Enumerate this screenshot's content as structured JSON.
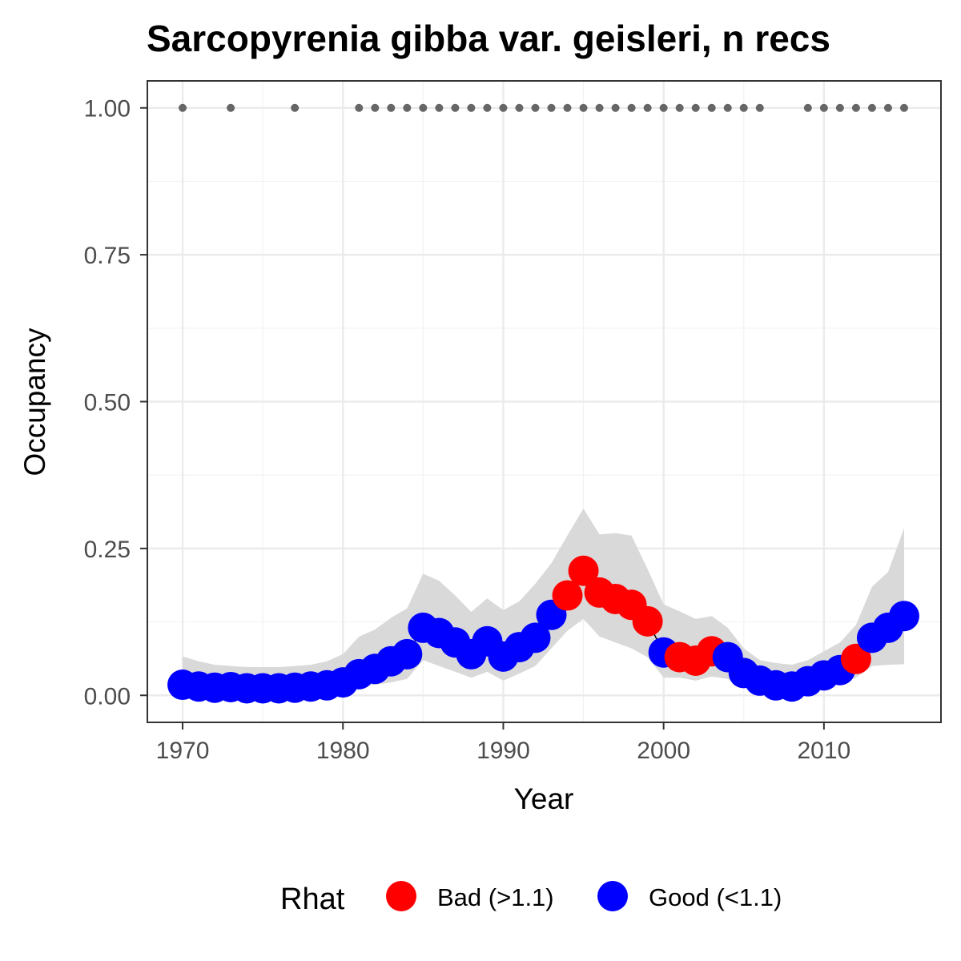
{
  "chart_data": {
    "type": "scatter",
    "title": "Sarcopyrenia gibba var. geisleri, n recs",
    "xlabel": "Year",
    "ylabel": "Occupancy",
    "xlim": [
      1967.8,
      2017.3
    ],
    "ylim": [
      -0.046,
      1.046
    ],
    "x_ticks": [
      1970,
      1980,
      1990,
      2000,
      2010
    ],
    "x_tick_labels": [
      "1970",
      "1980",
      "1990",
      "2000",
      "2010"
    ],
    "y_ticks": [
      0,
      0.25,
      0.5,
      0.75,
      1.0
    ],
    "y_tick_labels": [
      "0.00",
      "0.25",
      "0.50",
      "0.75",
      "1.00"
    ],
    "grid": true,
    "legend": {
      "title": "Rhat",
      "position": "bottom",
      "entries": [
        {
          "label": "Bad (>1.1)",
          "color": "#ff0000"
        },
        {
          "label": "Good (<1.1)",
          "color": "#0000ff"
        }
      ]
    },
    "colors": {
      "bad": "#ff0000",
      "good": "#0000ff",
      "ribbon": "#d9d9d9",
      "records": "#666666"
    },
    "years": [
      1970,
      1971,
      1972,
      1973,
      1974,
      1975,
      1976,
      1977,
      1978,
      1979,
      1980,
      1981,
      1982,
      1983,
      1984,
      1985,
      1986,
      1987,
      1988,
      1989,
      1990,
      1991,
      1992,
      1993,
      1994,
      1995,
      1996,
      1997,
      1998,
      1999,
      2000,
      2001,
      2002,
      2003,
      2004,
      2005,
      2006,
      2007,
      2008,
      2009,
      2010,
      2011,
      2012,
      2013,
      2014,
      2015
    ],
    "occupancy": [
      0.018,
      0.015,
      0.013,
      0.014,
      0.012,
      0.012,
      0.012,
      0.013,
      0.015,
      0.017,
      0.022,
      0.036,
      0.045,
      0.058,
      0.07,
      0.115,
      0.106,
      0.09,
      0.07,
      0.092,
      0.066,
      0.082,
      0.098,
      0.137,
      0.17,
      0.212,
      0.175,
      0.164,
      0.154,
      0.126,
      0.073,
      0.065,
      0.059,
      0.075,
      0.065,
      0.038,
      0.025,
      0.017,
      0.015,
      0.024,
      0.034,
      0.043,
      0.062,
      0.098,
      0.115,
      0.135
    ],
    "lower": [
      0.004,
      0.004,
      0.004,
      0.004,
      0.003,
      0.003,
      0.003,
      0.003,
      0.004,
      0.005,
      0.008,
      0.015,
      0.018,
      0.022,
      0.028,
      0.06,
      0.05,
      0.04,
      0.03,
      0.04,
      0.025,
      0.037,
      0.05,
      0.08,
      0.11,
      0.13,
      0.1,
      0.09,
      0.08,
      0.065,
      0.03,
      0.03,
      0.025,
      0.032,
      0.028,
      0.015,
      0.008,
      0.005,
      0.005,
      0.008,
      0.015,
      0.02,
      0.03,
      0.05,
      0.052,
      0.053
    ],
    "upper": [
      0.066,
      0.058,
      0.052,
      0.05,
      0.048,
      0.048,
      0.048,
      0.05,
      0.052,
      0.058,
      0.07,
      0.1,
      0.112,
      0.132,
      0.148,
      0.207,
      0.195,
      0.17,
      0.142,
      0.165,
      0.145,
      0.16,
      0.19,
      0.225,
      0.272,
      0.318,
      0.274,
      0.276,
      0.272,
      0.215,
      0.155,
      0.143,
      0.13,
      0.135,
      0.115,
      0.08,
      0.06,
      0.055,
      0.052,
      0.06,
      0.075,
      0.09,
      0.12,
      0.185,
      0.21,
      0.285
    ],
    "rhat": [
      "good",
      "good",
      "good",
      "good",
      "good",
      "good",
      "good",
      "good",
      "good",
      "good",
      "good",
      "good",
      "good",
      "good",
      "good",
      "good",
      "good",
      "good",
      "good",
      "good",
      "good",
      "good",
      "good",
      "good",
      "bad",
      "bad",
      "bad",
      "bad",
      "bad",
      "bad",
      "good",
      "bad",
      "bad",
      "bad",
      "good",
      "good",
      "good",
      "good",
      "good",
      "good",
      "good",
      "good",
      "bad",
      "good",
      "good",
      "good"
    ],
    "record_years": [
      1970,
      1973,
      1977,
      1981,
      1982,
      1983,
      1984,
      1985,
      1986,
      1987,
      1988,
      1989,
      1990,
      1991,
      1992,
      1993,
      1994,
      1995,
      1996,
      1997,
      1998,
      1999,
      2000,
      2001,
      2002,
      2003,
      2004,
      2005,
      2006,
      2009,
      2010,
      2011,
      2012,
      2013,
      2014,
      2015
    ],
    "record_value": 1.0
  }
}
